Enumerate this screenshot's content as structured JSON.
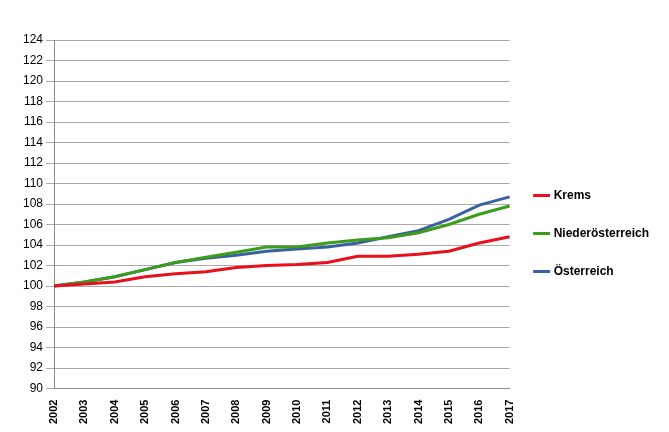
{
  "chart_data": {
    "type": "line",
    "categories": [
      "2002",
      "2003",
      "2004",
      "2005",
      "2006",
      "2007",
      "2008",
      "2009",
      "2010",
      "2011",
      "2012",
      "2013",
      "2014",
      "2015",
      "2016",
      "2017"
    ],
    "series": [
      {
        "name": "Krems",
        "color": "#e8101c",
        "values": [
          100,
          100.2,
          100.4,
          100.9,
          101.2,
          101.4,
          101.8,
          102.0,
          102.1,
          102.3,
          102.9,
          102.9,
          103.1,
          103.4,
          104.2,
          104.8
        ]
      },
      {
        "name": "Niederösterreich",
        "color": "#3c9c1c",
        "values": [
          100,
          100.4,
          100.9,
          101.6,
          102.3,
          102.8,
          103.3,
          103.8,
          103.8,
          104.2,
          104.5,
          104.7,
          105.2,
          106.0,
          107.0,
          107.8
        ]
      },
      {
        "name": "Österreich",
        "color": "#3a619f",
        "values": [
          100,
          100.4,
          100.9,
          101.6,
          102.3,
          102.7,
          103.0,
          103.4,
          103.6,
          103.8,
          104.2,
          104.8,
          105.4,
          106.5,
          107.9,
          108.7
        ]
      }
    ],
    "ylim": [
      90,
      124
    ],
    "yticks": [
      90,
      92,
      94,
      96,
      98,
      100,
      102,
      104,
      106,
      108,
      110,
      112,
      114,
      116,
      118,
      120,
      122,
      124
    ],
    "grid": true,
    "legend": "right"
  }
}
